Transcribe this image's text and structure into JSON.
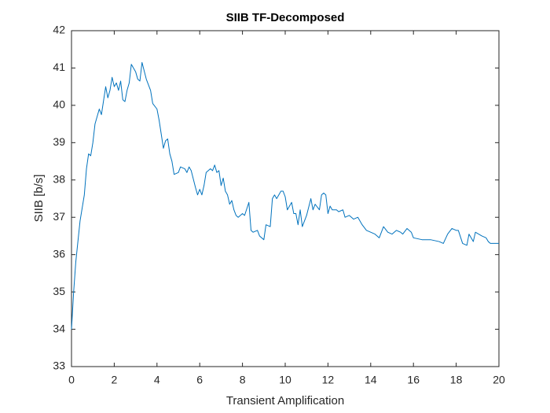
{
  "chart_data": {
    "type": "line",
    "title": "SIIB TF-Decomposed",
    "x_label": "Transient Amplification",
    "y_label": "SIIB [b/s]",
    "x": [
      0,
      0.1,
      0.2,
      0.4,
      0.6,
      0.7,
      0.8,
      0.9,
      1.0,
      1.1,
      1.3,
      1.4,
      1.6,
      1.7,
      1.8,
      1.9,
      2.0,
      2.1,
      2.2,
      2.3,
      2.4,
      2.5,
      2.6,
      2.7,
      2.8,
      3.0,
      3.1,
      3.2,
      3.3,
      3.5,
      3.6,
      3.7,
      3.8,
      4.0,
      4.1,
      4.3,
      4.4,
      4.5,
      4.6,
      4.7,
      4.8,
      5.0,
      5.1,
      5.3,
      5.4,
      5.5,
      5.6,
      5.8,
      5.9,
      6.0,
      6.1,
      6.2,
      6.3,
      6.5,
      6.6,
      6.7,
      6.8,
      6.9,
      7.0,
      7.1,
      7.2,
      7.3,
      7.4,
      7.5,
      7.6,
      7.7,
      7.8,
      8.0,
      8.1,
      8.3,
      8.4,
      8.5,
      8.7,
      8.8,
      9.0,
      9.1,
      9.3,
      9.4,
      9.5,
      9.6,
      9.8,
      9.9,
      10.0,
      10.1,
      10.2,
      10.3,
      10.4,
      10.5,
      10.6,
      10.7,
      10.8,
      11.0,
      11.2,
      11.3,
      11.4,
      11.6,
      11.7,
      11.8,
      11.9,
      12.0,
      12.1,
      12.2,
      12.4,
      12.5,
      12.7,
      12.8,
      13.0,
      13.2,
      13.4,
      13.6,
      13.8,
      14.0,
      14.2,
      14.4,
      14.6,
      14.8,
      15.0,
      15.2,
      15.4,
      15.5,
      15.7,
      15.9,
      16.0,
      16.4,
      16.8,
      17.2,
      17.4,
      17.6,
      17.8,
      18.0,
      18.1,
      18.3,
      18.5,
      18.6,
      18.8,
      18.9,
      19.2,
      19.4,
      19.5,
      19.6,
      19.8,
      20.0
    ],
    "series": [
      {
        "color": "#0072bd",
        "values": [
          34.0,
          35.0,
          35.8,
          36.9,
          37.6,
          38.3,
          38.7,
          38.65,
          39.0,
          39.5,
          39.9,
          39.75,
          40.5,
          40.2,
          40.4,
          40.75,
          40.5,
          40.6,
          40.4,
          40.65,
          40.15,
          40.1,
          40.4,
          40.6,
          41.1,
          40.9,
          40.7,
          40.65,
          41.15,
          40.7,
          40.55,
          40.4,
          40.05,
          39.9,
          39.6,
          38.85,
          39.05,
          39.1,
          38.7,
          38.5,
          38.15,
          38.2,
          38.35,
          38.3,
          38.2,
          38.35,
          38.25,
          37.8,
          37.6,
          37.75,
          37.6,
          37.85,
          38.2,
          38.3,
          38.25,
          38.4,
          38.2,
          38.25,
          37.85,
          38.05,
          37.7,
          37.6,
          37.35,
          37.45,
          37.2,
          37.05,
          37.0,
          37.1,
          37.05,
          37.4,
          36.65,
          36.6,
          36.65,
          36.5,
          36.4,
          36.8,
          36.75,
          37.5,
          37.6,
          37.5,
          37.7,
          37.7,
          37.55,
          37.2,
          37.3,
          37.4,
          37.1,
          37.1,
          36.8,
          37.2,
          36.75,
          37.05,
          37.5,
          37.2,
          37.35,
          37.2,
          37.6,
          37.65,
          37.6,
          37.1,
          37.3,
          37.2,
          37.2,
          37.15,
          37.2,
          37.0,
          37.05,
          36.95,
          37.0,
          36.8,
          36.65,
          36.6,
          36.55,
          36.45,
          36.75,
          36.6,
          36.55,
          36.65,
          36.6,
          36.55,
          36.7,
          36.6,
          36.45,
          36.4,
          36.4,
          36.35,
          36.3,
          36.55,
          36.7,
          36.65,
          36.65,
          36.3,
          36.25,
          36.55,
          36.35,
          36.6,
          36.5,
          36.45,
          36.35,
          36.3,
          36.3,
          36.3
        ]
      }
    ],
    "xlim": [
      0,
      20
    ],
    "xticks": [
      0,
      2,
      4,
      6,
      8,
      10,
      12,
      14,
      16,
      18,
      20
    ],
    "ylim": [
      33,
      42
    ],
    "yticks": [
      33,
      34,
      35,
      36,
      37,
      38,
      39,
      40,
      41,
      42
    ]
  }
}
